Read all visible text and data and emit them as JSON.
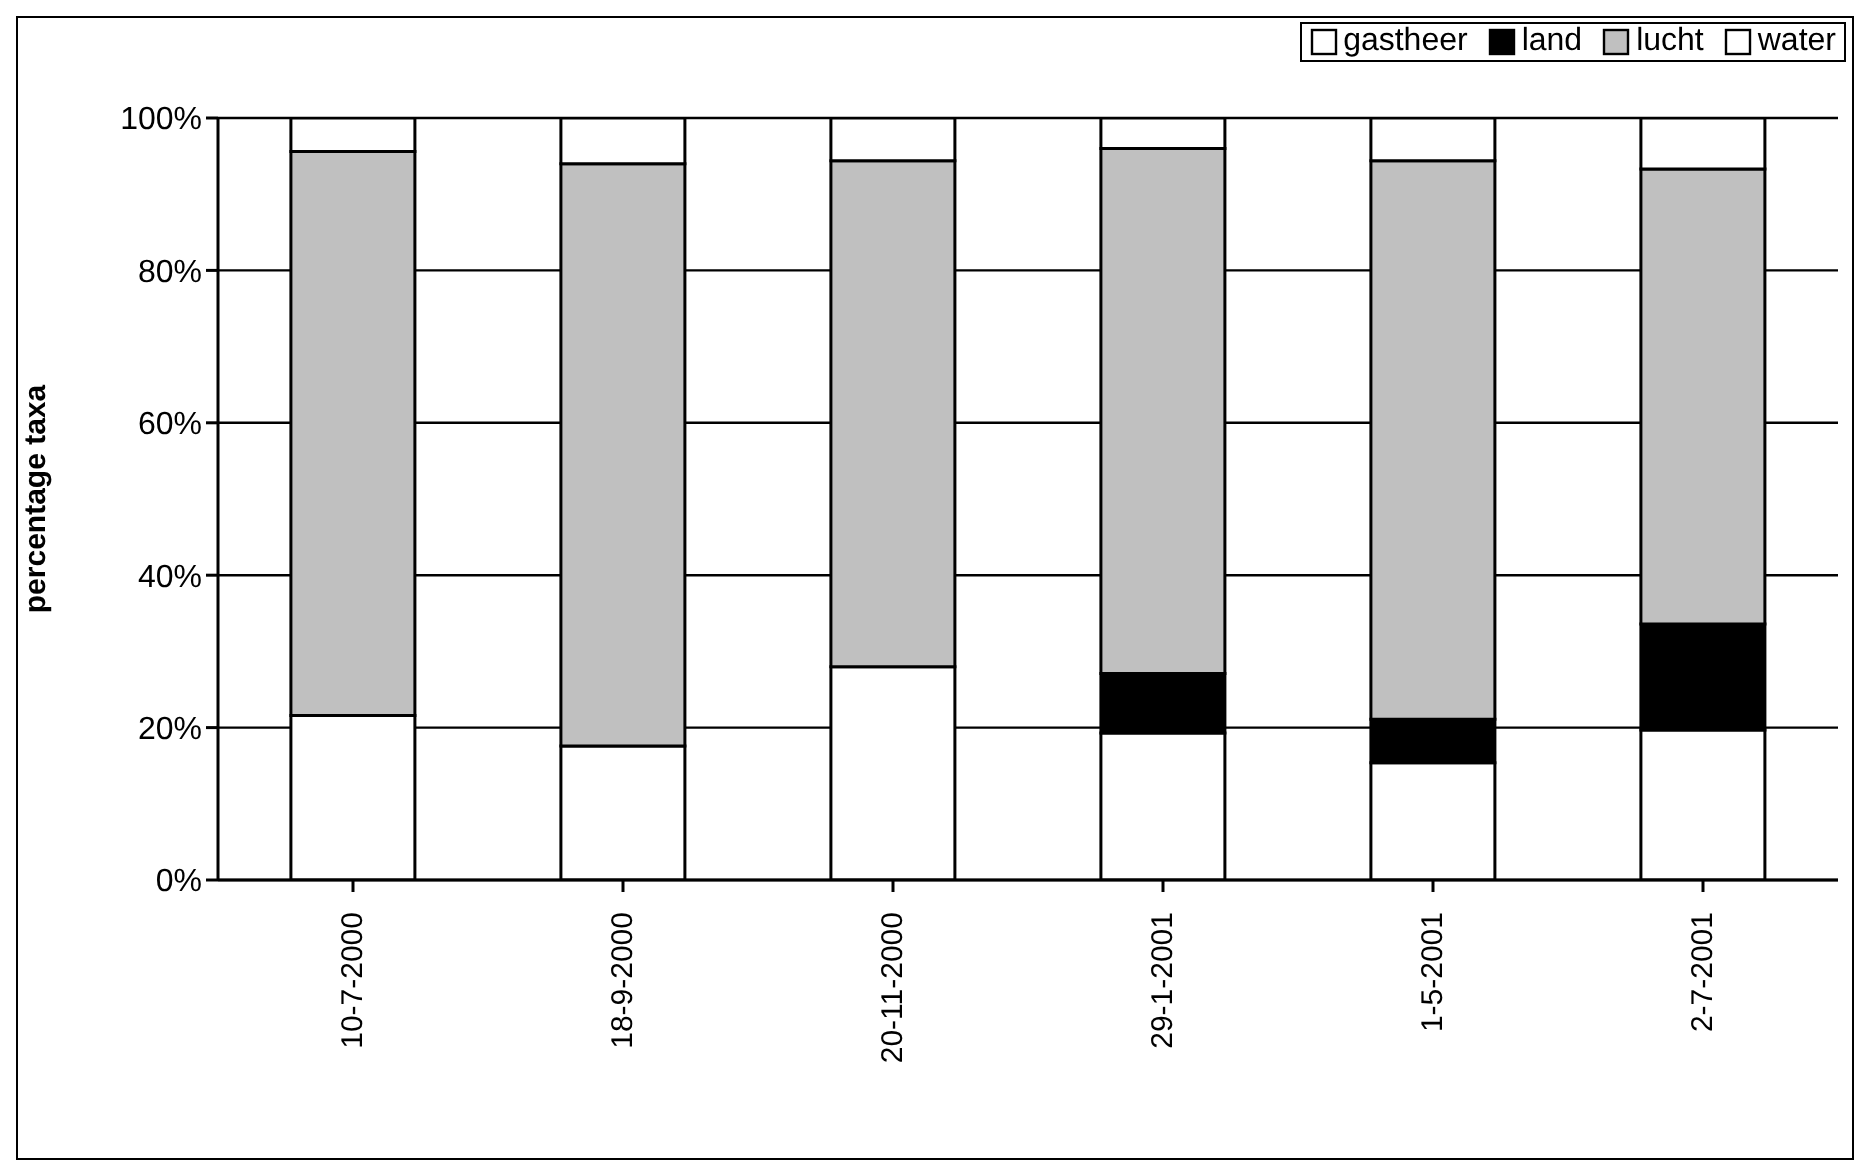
{
  "chart_data": {
    "type": "bar",
    "stacked": true,
    "ylabel": "percentage taxa",
    "categories": [
      "10-7-2000",
      "18-9-2000",
      "20-11-2000",
      "29-1-2001",
      "1-5-2001",
      "2-7-2001"
    ],
    "series": [
      {
        "name": "gastheer",
        "color": "#ffffff",
        "values": [
          21.6,
          17.6,
          28.0,
          19.3,
          15.4,
          19.7
        ]
      },
      {
        "name": "land",
        "color": "#000000",
        "values": [
          0,
          0,
          0,
          7.8,
          5.7,
          13.9
        ]
      },
      {
        "name": "lucht",
        "color": "#c0c0c0",
        "values": [
          74.0,
          76.4,
          66.4,
          68.9,
          73.3,
          59.7
        ]
      },
      {
        "name": "water",
        "color": "#ffffff",
        "values": [
          4.4,
          6.0,
          5.6,
          4.0,
          5.6,
          6.7
        ]
      }
    ],
    "ylim": [
      0,
      100
    ],
    "yticks": [
      {
        "value": 0,
        "label": "0%"
      },
      {
        "value": 20,
        "label": "20%"
      },
      {
        "value": 40,
        "label": "40%"
      },
      {
        "value": 60,
        "label": "60%"
      },
      {
        "value": 80,
        "label": "80%"
      },
      {
        "value": 100,
        "label": "100%"
      }
    ],
    "grid": "y",
    "legend": "top right"
  }
}
